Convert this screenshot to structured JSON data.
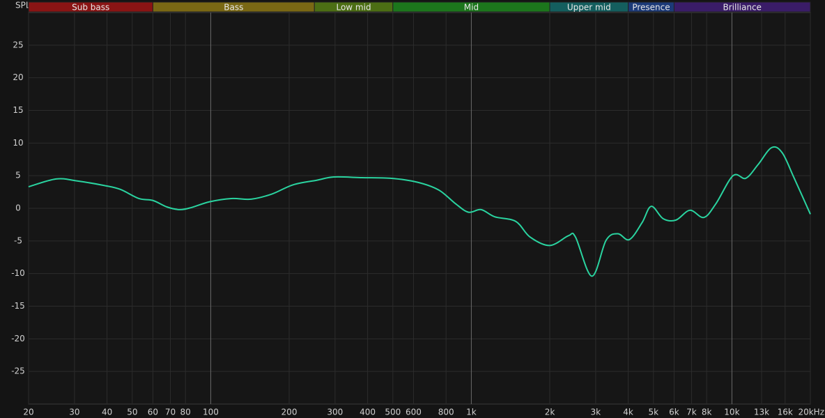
{
  "chart_data": {
    "type": "line",
    "y_label": "SPL",
    "log_x": true,
    "grid": true,
    "xlim": [
      20,
      20000
    ],
    "ylim": [
      -30,
      30
    ],
    "yticks": [
      -25,
      -20,
      -15,
      -10,
      -5,
      0,
      5,
      10,
      15,
      20,
      25
    ],
    "xticks": [
      20,
      30,
      40,
      50,
      60,
      70,
      80,
      100,
      200,
      300,
      400,
      500,
      600,
      800,
      {
        "value": 1000,
        "label": "1k"
      },
      {
        "value": 2000,
        "label": "2k"
      },
      {
        "value": 3000,
        "label": "3k"
      },
      {
        "value": 4000,
        "label": "4k"
      },
      {
        "value": 5000,
        "label": "5k"
      },
      {
        "value": 6000,
        "label": "6k"
      },
      {
        "value": 7000,
        "label": "7k"
      },
      {
        "value": 8000,
        "label": "8k"
      },
      {
        "value": 10000,
        "label": "10k"
      },
      {
        "value": 13000,
        "label": "13k"
      },
      {
        "value": 16000,
        "label": "16k"
      },
      {
        "value": 20000,
        "label": "20kHz"
      }
    ],
    "bands": [
      {
        "label": "Sub bass",
        "from": 20,
        "to": 60,
        "color": "#8a1414"
      },
      {
        "label": "Bass",
        "from": 60,
        "to": 250,
        "color": "#7a6814"
      },
      {
        "label": "Low mid",
        "from": 250,
        "to": 500,
        "color": "#4c6e14"
      },
      {
        "label": "Mid",
        "from": 500,
        "to": 2000,
        "color": "#1c761c"
      },
      {
        "label": "Upper mid",
        "from": 2000,
        "to": 4000,
        "color": "#145e5e"
      },
      {
        "label": "Presence",
        "from": 4000,
        "to": 6000,
        "color": "#1c3a78"
      },
      {
        "label": "Brilliance",
        "from": 6000,
        "to": 20000,
        "color": "#3a1c68"
      }
    ],
    "series": [
      {
        "color": "#2ad4a0",
        "x": [
          20,
          25.5,
          30.6,
          39,
          45,
          53,
          60,
          68,
          76,
          84,
          99,
          120,
          143,
          172,
          207,
          255,
          297,
          380,
          490,
          620,
          750,
          870,
          975,
          1090,
          1230,
          1480,
          1680,
          2000,
          2360,
          2510,
          2900,
          3290,
          3650,
          4040,
          4520,
          4900,
          5450,
          6100,
          6900,
          7800,
          8680,
          10100,
          11300,
          12600,
          14200,
          15600,
          17300,
          20000
        ],
        "values": [
          3.3,
          4.5,
          4.2,
          3.5,
          2.9,
          1.5,
          1.2,
          0.2,
          -0.2,
          0.1,
          1.0,
          1.5,
          1.4,
          2.2,
          3.6,
          4.3,
          4.8,
          4.7,
          4.6,
          4.0,
          2.8,
          0.7,
          -0.6,
          -0.2,
          -1.3,
          -2.0,
          -4.4,
          -5.7,
          -4.2,
          -4.4,
          -10.4,
          -4.9,
          -3.9,
          -4.8,
          -2.2,
          0.3,
          -1.6,
          -1.8,
          -0.3,
          -1.4,
          0.7,
          5.0,
          4.6,
          6.7,
          9.3,
          8.5,
          4.7,
          -0.9
        ]
      }
    ]
  }
}
